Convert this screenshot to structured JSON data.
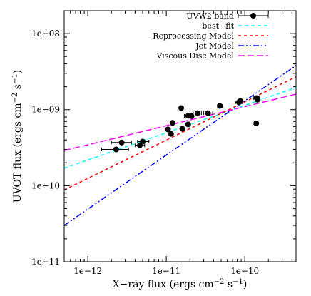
{
  "chart_data": {
    "type": "scatter",
    "xscale": "log",
    "yscale": "log",
    "xlim": [
      5e-13,
      4.5e-10
    ],
    "ylim": [
      1e-11,
      2e-08
    ],
    "grid": false,
    "legend_placement": "top-right",
    "xlabel": {
      "main": "X−ray flux (ergs cm",
      "sup1": "−2",
      "mid": " s",
      "sup2": "−1",
      "end": ")"
    },
    "ylabel": {
      "main": "UVOT flux (ergs cm",
      "sup1": "−2",
      "mid": " s",
      "sup2": "−1",
      "end": ")"
    },
    "x_ticks": [
      {
        "value": 1e-12,
        "label": "1e−12"
      },
      {
        "value": 1e-11,
        "label": "1e−11"
      },
      {
        "value": 1e-10,
        "label": "1e−10"
      }
    ],
    "y_ticks": [
      {
        "value": 1e-08,
        "label": "1e−08"
      },
      {
        "value": 1e-09,
        "label": "1e−09"
      },
      {
        "value": 1e-10,
        "label": "1e−10"
      },
      {
        "value": 1e-11,
        "label": "1e−11"
      }
    ],
    "series": [
      {
        "name": "UVW2 band",
        "kind": "points",
        "color": "#000000",
        "points": [
          {
            "x": 2.3e-12,
            "y": 3e-10,
            "xerr": [
              1.5e-12,
              3.3e-12
            ]
          },
          {
            "x": 2.7e-12,
            "y": 3.7e-10,
            "xerr": [
              2e-12,
              3.6e-12
            ]
          },
          {
            "x": 4.6e-12,
            "y": 3.4e-10,
            "xerr": [
              4e-12,
              5.3e-12
            ]
          },
          {
            "x": 5e-12,
            "y": 3.8e-10,
            "xerr": [
              4.3e-12,
              6e-12
            ]
          },
          {
            "x": 1.05e-11,
            "y": 5.5e-10,
            "xerr": [
              1e-11,
              1.1e-11
            ]
          },
          {
            "x": 1.2e-11,
            "y": 6.7e-10,
            "xerr": [
              1.15e-11,
              1.25e-11
            ]
          },
          {
            "x": 1.15e-11,
            "y": 4.8e-10,
            "xerr": [
              1.1e-11,
              1.2e-11
            ]
          },
          {
            "x": 1.55e-11,
            "y": 1.05e-09,
            "xerr": [
              1.5e-11,
              1.6e-11
            ]
          },
          {
            "x": 1.6e-11,
            "y": 5.6e-10,
            "xerr": [
              1.55e-11,
              1.65e-11
            ]
          },
          {
            "x": 1.9e-11,
            "y": 6.4e-10,
            "xerr": [
              1.8e-11,
              2e-11
            ]
          },
          {
            "x": 1.9e-11,
            "y": 8.3e-10,
            "xerr": [
              1.7e-11,
              2.1e-11
            ]
          },
          {
            "x": 2.1e-11,
            "y": 8.2e-10,
            "xerr": [
              2e-11,
              2.2e-11
            ]
          },
          {
            "x": 2.5e-11,
            "y": 9e-10,
            "xerr": [
              2.2e-11,
              2.8e-11
            ]
          },
          {
            "x": 3.4e-11,
            "y": 9e-10,
            "xerr": [
              3e-11,
              3.9e-11
            ]
          },
          {
            "x": 4.8e-11,
            "y": 1.12e-09,
            "xerr": [
              4.5e-11,
              5.2e-11
            ]
          },
          {
            "x": 8.4e-11,
            "y": 1.25e-09,
            "xerr": [
              7.6e-11,
              9.3e-11
            ]
          },
          {
            "x": 8.8e-11,
            "y": 1.3e-09,
            "xerr": [
              8.2e-11,
              9.4e-11
            ]
          },
          {
            "x": 1.42e-10,
            "y": 1.42e-09,
            "xerr": [
              1.3e-10,
              1.55e-10
            ]
          },
          {
            "x": 1.45e-10,
            "y": 1.35e-09,
            "xerr": [
              1.35e-10,
              1.55e-10
            ]
          },
          {
            "x": 1.4e-10,
            "y": 6.6e-10,
            "xerr": [
              1.38e-10,
              1.42e-10
            ]
          }
        ]
      },
      {
        "name": "best−fit",
        "kind": "line",
        "color": "#00ffff",
        "dash": "5,4",
        "points": [
          {
            "x": 5e-13,
            "y": 1.7e-10
          },
          {
            "x": 4.5e-10,
            "y": 1.95e-09
          }
        ]
      },
      {
        "name": "Reprocessing Model",
        "kind": "line",
        "color": "#ff0000",
        "dash": "4,4",
        "points": [
          {
            "x": 5e-13,
            "y": 8.8e-11
          },
          {
            "x": 4.5e-10,
            "y": 2.7e-09
          }
        ]
      },
      {
        "name": "Jet Model",
        "kind": "line",
        "color": "#0000ff",
        "dash": "8,3,2,3,2,3",
        "points": [
          {
            "x": 5e-13,
            "y": 3e-11
          },
          {
            "x": 4.5e-10,
            "y": 3.8e-09
          }
        ]
      },
      {
        "name": "Viscous Disc Model",
        "kind": "line",
        "color": "#ff00ff",
        "dash": "9,4",
        "points": [
          {
            "x": 5e-13,
            "y": 2.9e-10
          },
          {
            "x": 4.5e-10,
            "y": 1.6e-09
          }
        ]
      }
    ]
  }
}
